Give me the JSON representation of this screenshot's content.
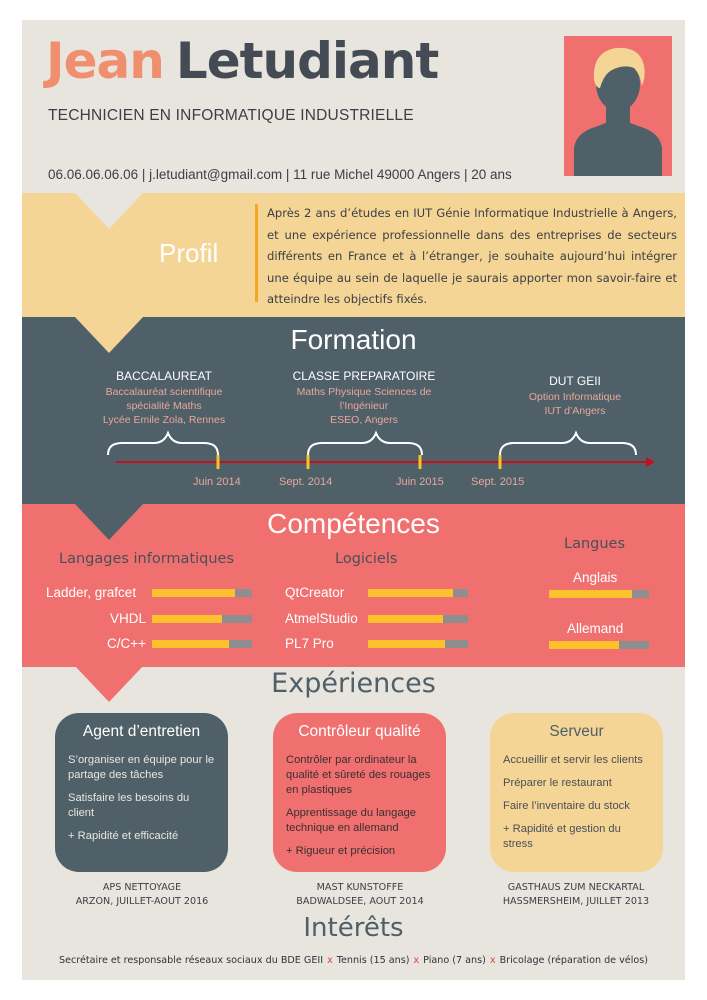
{
  "header": {
    "first_name": "Jean",
    "last_name": "Letudiant",
    "job_title": "TECHNICIEN EN INFORMATIQUE INDUSTRIELLE",
    "contact": "06.06.06.06.06 | j.letudiant@gmail.com | 11 rue Michel 49000 Angers | 20 ans"
  },
  "profil": {
    "title": "Profil",
    "text": "Après 2 ans d’études en IUT Génie Informatique Industrielle à Angers, et une expérience professionnelle dans des entreprises de secteurs différents en France et à l’étranger, je souhaite aujourd’hui intégrer une équipe au sein de laquelle je saurais apporter mon savoir-faire et atteindre les objectifs fixés."
  },
  "formation": {
    "title": "Formation",
    "items": [
      {
        "title": "BACCALAUREAT",
        "lines": [
          "Baccalauréat scientifique",
          "spécialité Maths",
          "Lycée Emile Zola, Rennes"
        ]
      },
      {
        "title": "CLASSE PREPARATOIRE",
        "lines": [
          "Maths Physique Sciences de",
          "l’Ingénieur",
          "ESEO, Angers"
        ]
      },
      {
        "title": "DUT GEII",
        "lines": [
          "Option Informatique",
          "IUT d’Angers"
        ]
      }
    ],
    "dates": [
      "Juin 2014",
      "Sept. 2014",
      "Juin 2015",
      "Sept. 2015"
    ]
  },
  "competences": {
    "title": "Compétences",
    "langages": {
      "title": "Langages informatiques",
      "items": [
        {
          "label": "Ladder, grafcet",
          "level": 0.83
        },
        {
          "label": "VHDL",
          "level": 0.7
        },
        {
          "label": "C/C++",
          "level": 0.77
        }
      ]
    },
    "logiciels": {
      "title": "Logiciels",
      "items": [
        {
          "label": "QtCreator",
          "level": 0.85
        },
        {
          "label": "AtmelStudio",
          "level": 0.75
        },
        {
          "label": "PL7 Pro",
          "level": 0.77
        }
      ]
    },
    "langues": {
      "title": "Langues",
      "items": [
        {
          "label": "Anglais",
          "level": 0.83
        },
        {
          "label": "Allemand",
          "level": 0.7
        }
      ]
    }
  },
  "experiences": {
    "title": "Expériences",
    "cards": [
      {
        "title": "Agent d’entretien",
        "items": [
          "S’organiser en équipe pour le partage des tâches",
          "Satisfaire les besoins du client",
          "+ Rapidité et efficacité"
        ],
        "employer": [
          "APS NETTOYAGE",
          "ARZON, JUILLET-AOUT 2016"
        ]
      },
      {
        "title": "Contrôleur qualité",
        "items": [
          "Contrôler par ordinateur la qualité et sûreté des rouages en plastiques",
          "Apprentissage du langage technique en allemand",
          "+ Rigueur et précision"
        ],
        "employer": [
          "MAST KUNSTOFFE",
          "BADWALDSEE, AOUT 2014"
        ]
      },
      {
        "title": "Serveur",
        "items": [
          "Accueillir et servir les clients",
          "Préparer le restaurant",
          "Faire l’inventaire du stock",
          "+ Rapidité et gestion du stress"
        ],
        "employer": [
          "GASTHAUS ZUM NECKARTAL",
          "HASSMERSHEIM, JUILLET 2013"
        ]
      }
    ]
  },
  "interets": {
    "title": "Intérêts",
    "items": [
      "Secrétaire et responsable réseaux sociaux du BDE GEII",
      "Tennis (15 ans)",
      "Piano (7 ans)",
      "Bricolage (réparation de vélos)"
    ],
    "separator": "x"
  },
  "colors": {
    "accent_orange": "#ef8f6e",
    "slate": "#4f6068",
    "sand": "#f4d595",
    "coral": "#f07070",
    "bar_fill": "#fcc12c",
    "timeline_arrow": "#c0111f"
  }
}
